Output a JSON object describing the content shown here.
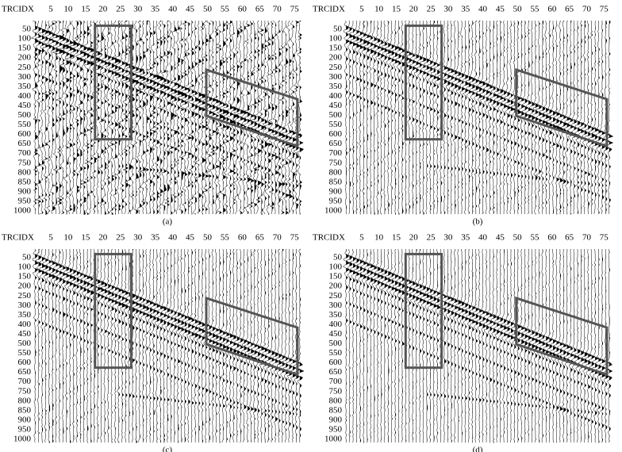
{
  "chart_data": [
    {
      "type": "seismic",
      "caption": "(a)",
      "x_label": "TRCIDX",
      "xlim": [
        0,
        77
      ],
      "xticks": [
        5,
        10,
        15,
        20,
        25,
        30,
        35,
        40,
        45,
        50,
        55,
        60,
        65,
        70,
        75
      ],
      "ylim": [
        0,
        1025
      ],
      "yticks": [
        50,
        100,
        150,
        200,
        250,
        300,
        350,
        400,
        450,
        500,
        550,
        600,
        650,
        700,
        750,
        800,
        850,
        900,
        950,
        1000
      ],
      "y_inverted": true
    },
    {
      "type": "seismic",
      "caption": "(b)",
      "x_label": "TRCIDX",
      "xlim": [
        0,
        77
      ],
      "xticks": [
        5,
        10,
        15,
        20,
        25,
        30,
        35,
        40,
        45,
        50,
        55,
        60,
        65,
        70,
        75
      ],
      "ylim": [
        0,
        1025
      ],
      "yticks": [
        50,
        100,
        150,
        200,
        250,
        300,
        350,
        400,
        450,
        500,
        550,
        600,
        650,
        700,
        750,
        800,
        850,
        900,
        950,
        1000
      ],
      "y_inverted": true
    },
    {
      "type": "seismic",
      "caption": "(c)",
      "x_label": "TRCIDX",
      "xlim": [
        0,
        77
      ],
      "xticks": [
        5,
        10,
        15,
        20,
        25,
        30,
        35,
        40,
        45,
        50,
        55,
        60,
        65,
        70,
        75
      ],
      "ylim": [
        0,
        1025
      ],
      "yticks": [
        50,
        100,
        150,
        200,
        250,
        300,
        350,
        400,
        450,
        500,
        550,
        600,
        650,
        700,
        750,
        800,
        850,
        900,
        950,
        1000
      ],
      "y_inverted": true
    },
    {
      "type": "seismic",
      "caption": "(d)",
      "x_label": "TRCIDX",
      "xlim": [
        0,
        77
      ],
      "xticks": [
        5,
        10,
        15,
        20,
        25,
        30,
        35,
        40,
        45,
        50,
        55,
        60,
        65,
        70,
        75
      ],
      "ylim": [
        0,
        1025
      ],
      "yticks": [
        50,
        100,
        150,
        200,
        250,
        300,
        350,
        400,
        450,
        500,
        550,
        600,
        650,
        700,
        750,
        800,
        850,
        900,
        950,
        1000
      ],
      "y_inverted": true
    }
  ]
}
